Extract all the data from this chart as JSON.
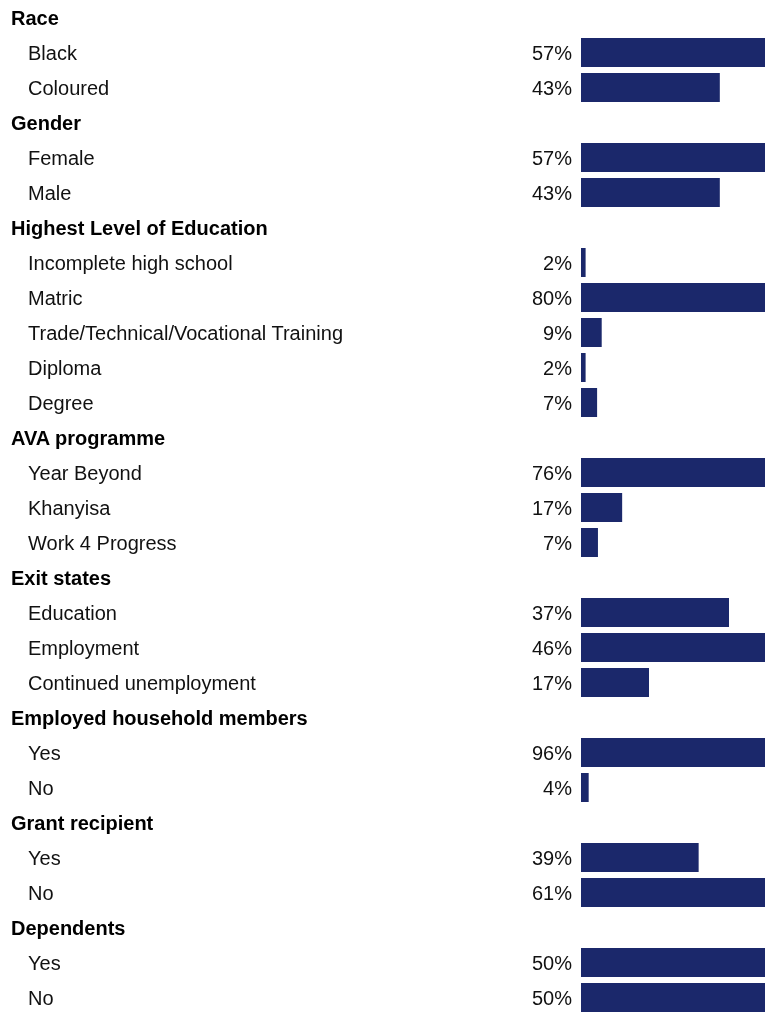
{
  "chart_data": [
    {
      "type": "bar",
      "orientation": "horizontal",
      "title": "Race",
      "categories": [
        "Black",
        "Coloured"
      ],
      "values": [
        57,
        43
      ],
      "value_labels": [
        "57%",
        "43%"
      ],
      "color": "#1b286b"
    },
    {
      "type": "bar",
      "orientation": "horizontal",
      "title": "Gender",
      "categories": [
        "Female",
        "Male"
      ],
      "values": [
        57,
        43
      ],
      "value_labels": [
        "57%",
        "43%"
      ],
      "color": "#1b286b"
    },
    {
      "type": "bar",
      "orientation": "horizontal",
      "title": "Highest Level of Education",
      "categories": [
        "Incomplete high school",
        "Matric",
        "Trade/Technical/Vocational Training",
        "Diploma",
        "Degree"
      ],
      "values": [
        2,
        80,
        9,
        2,
        7
      ],
      "value_labels": [
        "2%",
        "80%",
        "9%",
        "2%",
        "7%"
      ],
      "color": "#1b286b"
    },
    {
      "type": "bar",
      "orientation": "horizontal",
      "title": "AVA programme",
      "categories": [
        "Year Beyond",
        "Khanyisa",
        "Work 4 Progress"
      ],
      "values": [
        76,
        17,
        7
      ],
      "value_labels": [
        "76%",
        "17%",
        "7%"
      ],
      "color": "#1b286b"
    },
    {
      "type": "bar",
      "orientation": "horizontal",
      "title": "Exit states",
      "categories": [
        "Education",
        "Employment",
        "Continued unemployment"
      ],
      "values": [
        37,
        46,
        17
      ],
      "value_labels": [
        "37%",
        "46%",
        "17%"
      ],
      "color": "#1b286b"
    },
    {
      "type": "bar",
      "orientation": "horizontal",
      "title": "Employed household members",
      "categories": [
        "Yes",
        "No"
      ],
      "values": [
        96,
        4
      ],
      "value_labels": [
        "96%",
        "4%"
      ],
      "color": "#1b286b"
    },
    {
      "type": "bar",
      "orientation": "horizontal",
      "title": "Grant recipient",
      "categories": [
        "Yes",
        "No"
      ],
      "values": [
        39,
        61
      ],
      "value_labels": [
        "39%",
        "61%"
      ],
      "color": "#1b286b"
    },
    {
      "type": "bar",
      "orientation": "horizontal",
      "title": "Dependents",
      "categories": [
        "Yes",
        "No"
      ],
      "values": [
        50,
        50
      ],
      "value_labels": [
        "50%",
        "50%"
      ],
      "color": "#1b286b"
    }
  ]
}
